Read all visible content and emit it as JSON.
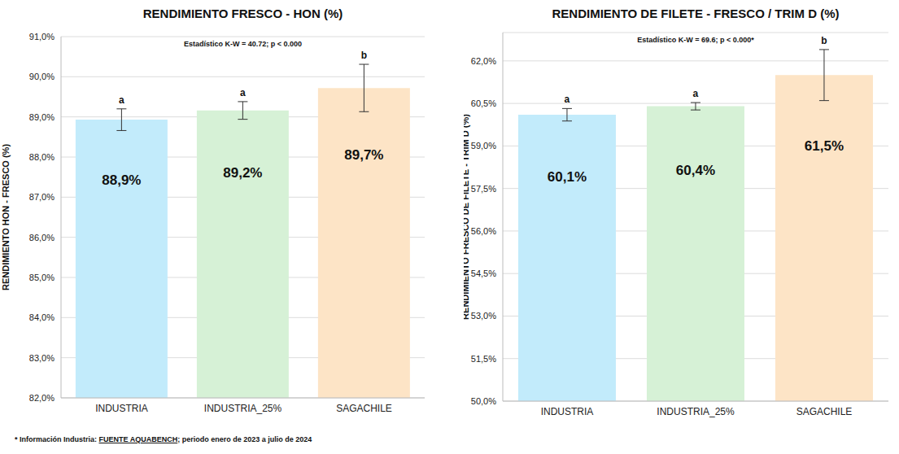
{
  "chart_data": [
    {
      "type": "bar",
      "title": "RENDIMIENTO FRESCO - HON (%)",
      "y_label": "RENDIMIENTO HON - FRESCO (%)",
      "annotation": "Estadístico K-W = 40.72; p < 0.000",
      "categories": [
        "INDUSTRIA",
        "INDUSTRIA_25%",
        "SAGACHILE"
      ],
      "values": [
        88.93,
        89.16,
        89.72
      ],
      "value_labels": [
        "88,9%",
        "89,2%",
        "89,7%"
      ],
      "errors": [
        0.27,
        0.22,
        0.59
      ],
      "letters": [
        "a",
        "a",
        "b"
      ],
      "colors": [
        "#c2ebfb",
        "#d6f1d6",
        "#fde4c6"
      ],
      "ylim": [
        82,
        91
      ],
      "yticks": [
        {
          "value": 82,
          "label": "82,0%"
        },
        {
          "value": 83,
          "label": "83,0%"
        },
        {
          "value": 84,
          "label": "84,0%"
        },
        {
          "value": 85,
          "label": "85,0%"
        },
        {
          "value": 86,
          "label": "86,0%"
        },
        {
          "value": 87,
          "label": "87,0%"
        },
        {
          "value": 88,
          "label": "88,0%"
        },
        {
          "value": 89,
          "label": "89,0%"
        },
        {
          "value": 90,
          "label": "90,0%"
        },
        {
          "value": 91,
          "label": "91,0%"
        }
      ],
      "grid": true,
      "data_labels": true
    },
    {
      "type": "bar",
      "title": "RENDIMIENTO DE FILETE - FRESCO / TRIM D (%)",
      "y_label": "RENDIMIENTO  FRESCO DE FILETE - TRIM D (%)",
      "annotation": "Estadístico K-W = 69.6; p < 0.000*",
      "categories": [
        "INDUSTRIA",
        "INDUSTRIA_25%",
        "SAGACHILE"
      ],
      "values": [
        60.1,
        60.4,
        61.5
      ],
      "value_labels": [
        "60,1%",
        "60,4%",
        "61,5%"
      ],
      "errors": [
        0.22,
        0.13,
        0.9
      ],
      "letters": [
        "a",
        "a",
        "b"
      ],
      "colors": [
        "#c2ebfb",
        "#d6f1d6",
        "#fde4c6"
      ],
      "ylim": [
        50,
        63
      ],
      "yticks": [
        {
          "value": 50,
          "label": "50,0%"
        },
        {
          "value": 51.5,
          "label": "51,5%"
        },
        {
          "value": 53,
          "label": "53,0%"
        },
        {
          "value": 54.5,
          "label": "54,5%"
        },
        {
          "value": 56,
          "label": "56,0%"
        },
        {
          "value": 57.5,
          "label": "57,5%"
        },
        {
          "value": 59,
          "label": "59,0%"
        },
        {
          "value": 60.5,
          "label": "60,5%"
        },
        {
          "value": 62,
          "label": "62,0%"
        }
      ],
      "grid": true,
      "data_labels": true
    }
  ],
  "footnote": {
    "prefix": "* Información Industria: ",
    "source": "FUENTE AQUABENCH",
    "suffix": "; periodo enero de 2023 a julio de 2024"
  }
}
